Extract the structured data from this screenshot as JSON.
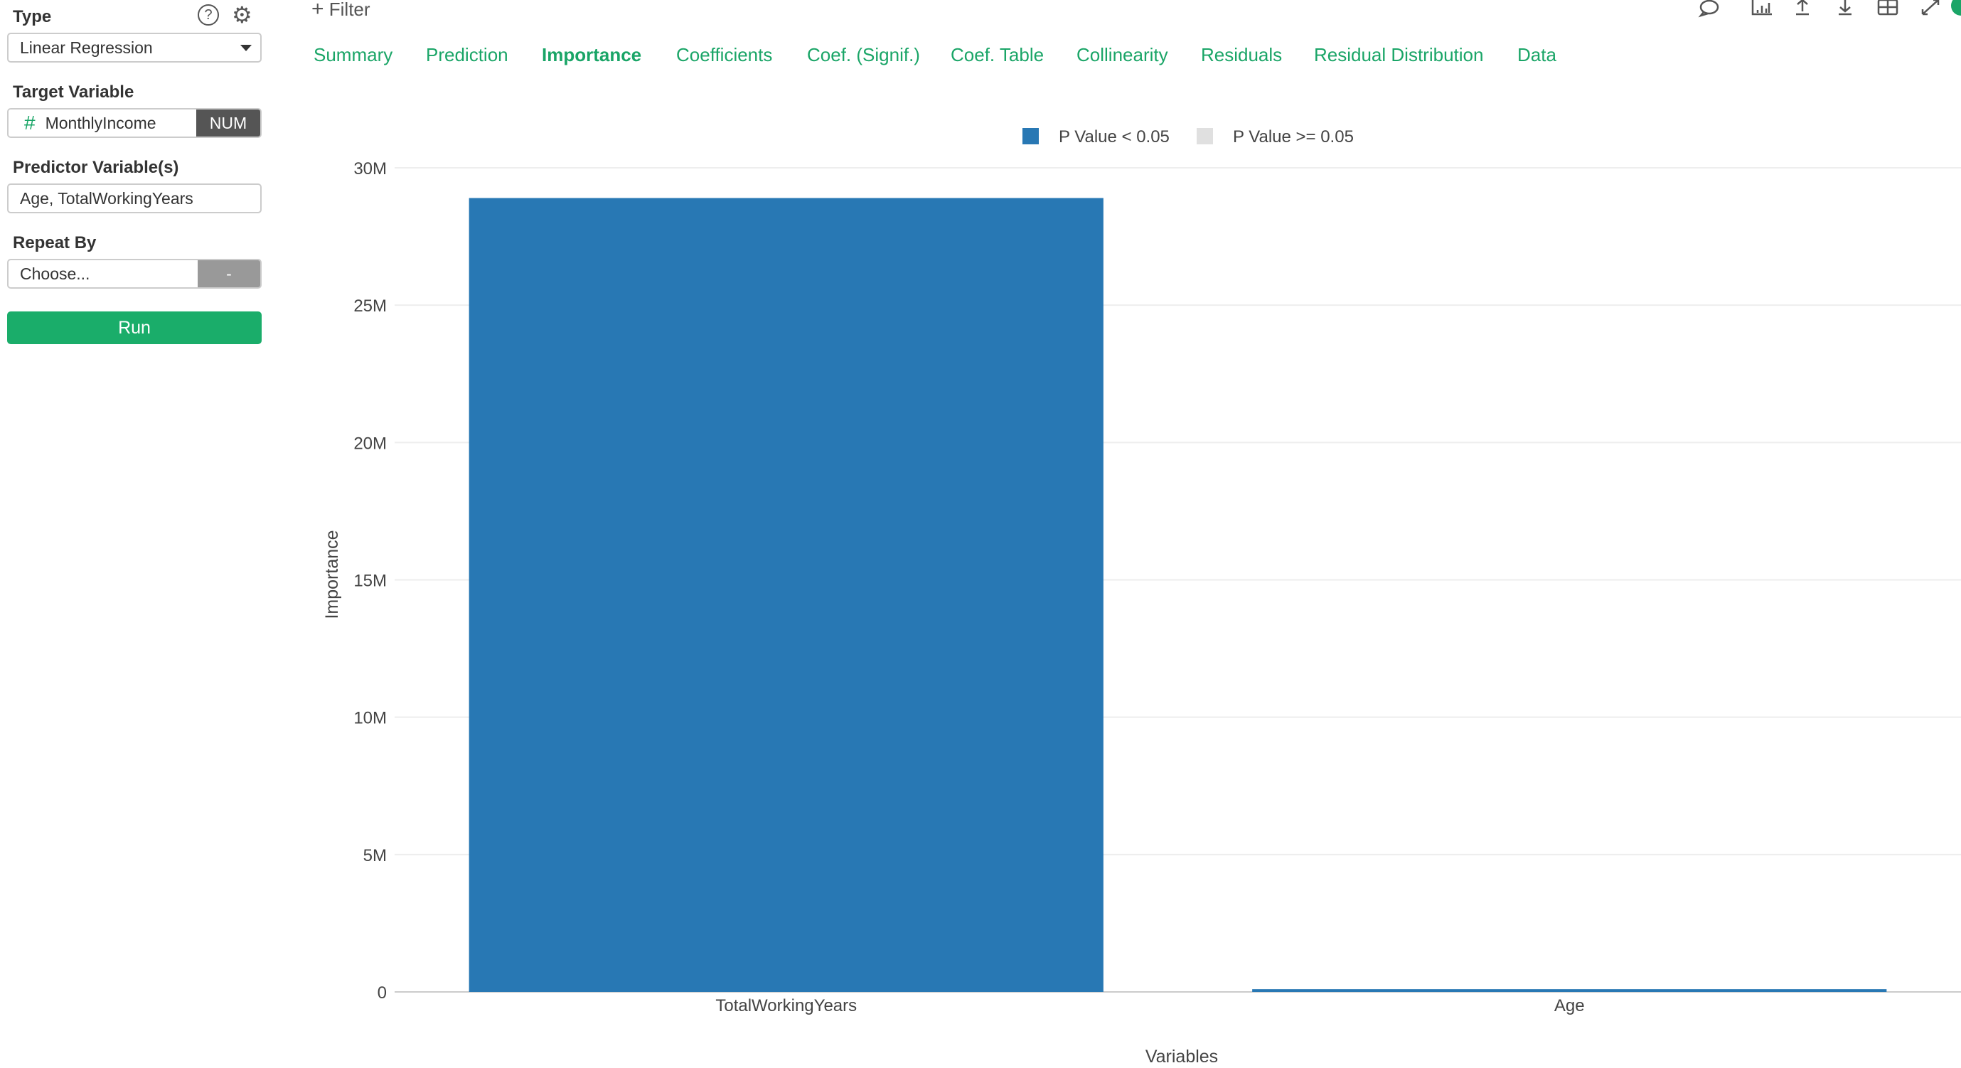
{
  "sidebar": {
    "type_label": "Type",
    "type_value": "Linear Regression",
    "target_label": "Target Variable",
    "target_value": "MonthlyIncome",
    "target_type": "NUM",
    "predictor_label": "Predictor Variable(s)",
    "predictor_value": "Age, TotalWorkingYears",
    "repeat_label": "Repeat By",
    "repeat_placeholder": "Choose...",
    "repeat_button": "-",
    "run_label": "Run"
  },
  "toolbar": {
    "filter_label": "Filter"
  },
  "tabs": [
    {
      "label": "Summary",
      "active": false
    },
    {
      "label": "Prediction",
      "active": false
    },
    {
      "label": "Importance",
      "active": true
    },
    {
      "label": "Coefficients",
      "active": false
    },
    {
      "label": "Coef. (Signif.)",
      "active": false
    },
    {
      "label": "Coef. Table",
      "active": false
    },
    {
      "label": "Collinearity",
      "active": false
    },
    {
      "label": "Residuals",
      "active": false
    },
    {
      "label": "Residual Distribution",
      "active": false
    },
    {
      "label": "Data",
      "active": false
    }
  ],
  "colors": {
    "accent": "#1aa567",
    "significant": "#2878b4",
    "not_significant": "#e0e0e0"
  },
  "chart_data": {
    "type": "bar",
    "categories": [
      "TotalWorkingYears",
      "Age"
    ],
    "values": [
      28900000,
      100000
    ],
    "significant": [
      true,
      true
    ],
    "xlabel": "Variables",
    "ylabel": "Importance",
    "ylim": [
      0,
      30000000
    ],
    "yticks": [
      0,
      5000000,
      10000000,
      15000000,
      20000000,
      25000000,
      30000000
    ],
    "ytick_labels": [
      "0",
      "5M",
      "10M",
      "15M",
      "20M",
      "25M",
      "30M"
    ],
    "legend": [
      "P Value < 0.05",
      "P Value >= 0.05"
    ],
    "legend_position": "top-center",
    "grid": true
  }
}
